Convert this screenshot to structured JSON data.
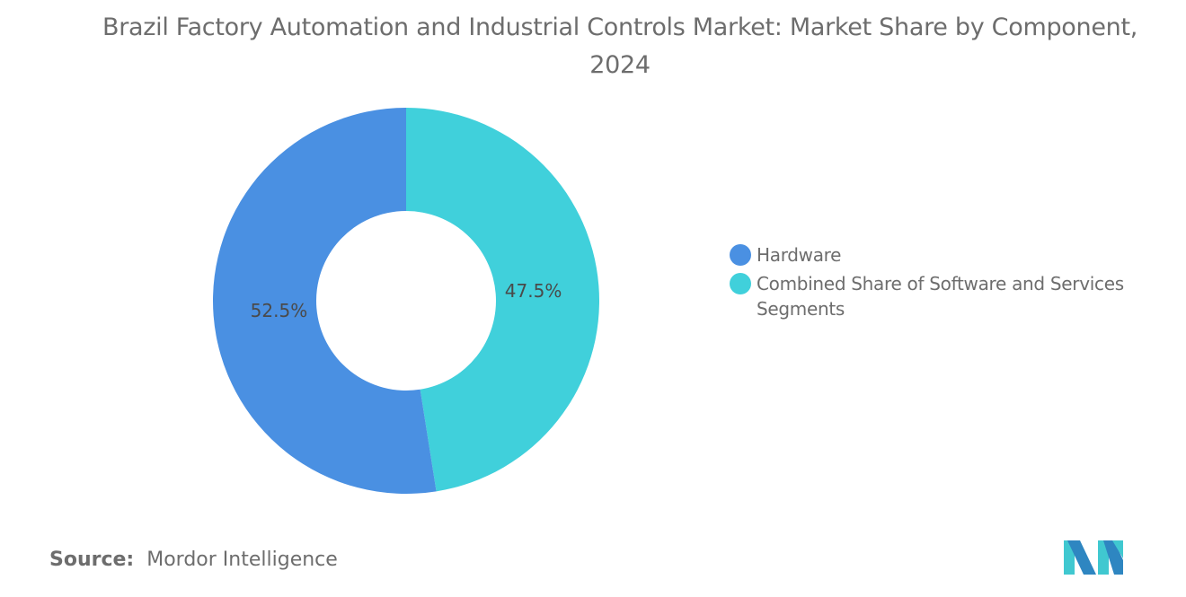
{
  "chart_data": {
    "type": "pie",
    "title": "Brazil Factory Automation and Industrial Controls Market: Market Share by Component, 2024",
    "donut": true,
    "legend_position": "right",
    "slices": [
      {
        "name": "Combined Share of Software and Services Segments",
        "value": 47.5,
        "label": "47.5%",
        "color": "#40d0db"
      },
      {
        "name": "Hardware",
        "value": 52.5,
        "label": "52.5%",
        "color": "#4a90e2"
      }
    ]
  },
  "legend": [
    {
      "label": "Hardware",
      "color": "#4a90e2"
    },
    {
      "label": "Combined Share of Software and Services Segments",
      "color": "#40d0db"
    }
  ],
  "source": {
    "prefix": "Source:",
    "text": "Mordor Intelligence"
  },
  "logo": {
    "text": "Mordor Intelligence logo",
    "colors": [
      "#2e86c1",
      "#40c8d0"
    ]
  }
}
